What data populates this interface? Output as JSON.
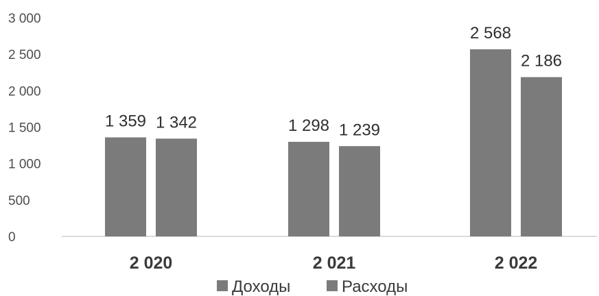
{
  "chart_data": {
    "type": "bar",
    "categories": [
      "2 020",
      "2 021",
      "2 022"
    ],
    "series": [
      {
        "name": "Доходы",
        "values": [
          1359,
          1298,
          2568
        ],
        "labels": [
          "1 359",
          "1 298",
          "2 568"
        ],
        "color": "#7b7b7b"
      },
      {
        "name": "Расходы",
        "values": [
          1342,
          1239,
          2186
        ],
        "labels": [
          "1 342",
          "1 239",
          "2 186"
        ],
        "color": "#7b7b7b"
      }
    ],
    "y_ticks": [
      "0",
      "500",
      "1 000",
      "1 500",
      "2 000",
      "2 500",
      "3 000"
    ],
    "ylim": [
      0,
      3000
    ],
    "title": "",
    "xlabel": "",
    "ylabel": "",
    "grid": false,
    "legend": "bottom-center"
  }
}
